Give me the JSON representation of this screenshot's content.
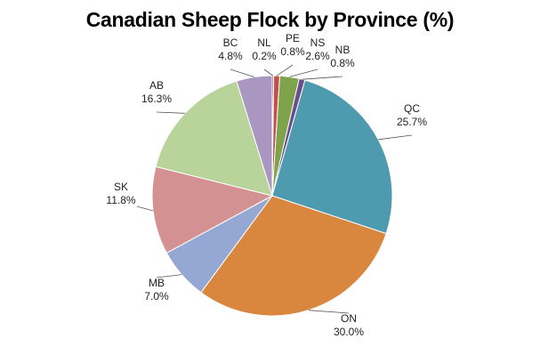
{
  "chart_data": {
    "type": "pie",
    "title": "Canadian Sheep Flock by Province (%)",
    "unit": "%",
    "slices": [
      {
        "name": "NL",
        "value": 0.2,
        "label": "0.2%",
        "color": "#9e3a38"
      },
      {
        "name": "PE",
        "value": 0.8,
        "label": "0.8%",
        "color": "#c0504d"
      },
      {
        "name": "NS",
        "value": 2.6,
        "label": "2.6%",
        "color": "#7fa34a"
      },
      {
        "name": "NB",
        "value": 0.8,
        "label": "0.8%",
        "color": "#6a4f8c"
      },
      {
        "name": "QC",
        "value": 25.7,
        "label": "25.7%",
        "color": "#4e9aaf"
      },
      {
        "name": "ON",
        "value": 30.0,
        "label": "30.0%",
        "color": "#d9863f"
      },
      {
        "name": "MB",
        "value": 7.0,
        "label": "7.0%",
        "color": "#95a8d4"
      },
      {
        "name": "SK",
        "value": 11.8,
        "label": "11.8%",
        "color": "#d39191"
      },
      {
        "name": "AB",
        "value": 16.3,
        "label": "16.3%",
        "color": "#b8d49a"
      },
      {
        "name": "BC",
        "value": 4.8,
        "label": "4.8%",
        "color": "#a996c1"
      }
    ],
    "legend": "none",
    "data_labels": "outside with leader lines"
  }
}
